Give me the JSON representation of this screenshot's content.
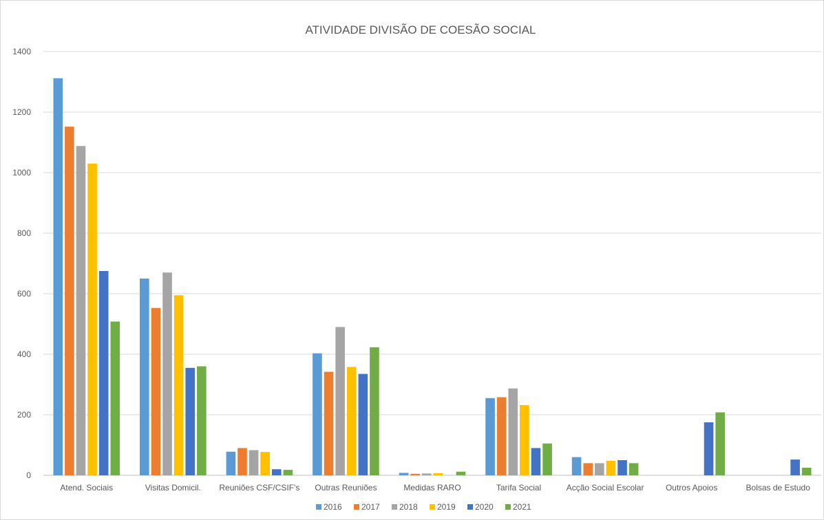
{
  "chart_data": {
    "type": "bar",
    "title": "ATIVIDADE DIVISÃO DE COESÃO SOCIAL",
    "xlabel": "",
    "ylabel": "",
    "ylim": [
      0,
      1400
    ],
    "yticks": [
      0,
      200,
      400,
      600,
      800,
      1000,
      1200,
      1400
    ],
    "grid": true,
    "legend_position": "bottom",
    "categories": [
      "Atend. Sociais",
      "Visitas Domicil.",
      "Reuniões CSF/CSIF's",
      "Outras Reuniões",
      "Medidas RARO",
      "Tarifa Social",
      "Acção Social Escolar",
      "Outros Apoios",
      "Bolsas de Estudo"
    ],
    "series": [
      {
        "name": "2016",
        "color": "#5b9bd5",
        "values": [
          1312,
          650,
          78,
          403,
          8,
          255,
          60,
          0,
          0
        ]
      },
      {
        "name": "2017",
        "color": "#ed7d31",
        "values": [
          1152,
          553,
          90,
          342,
          5,
          258,
          40,
          0,
          0
        ]
      },
      {
        "name": "2018",
        "color": "#a5a5a5",
        "values": [
          1088,
          670,
          83,
          490,
          6,
          287,
          40,
          0,
          0
        ]
      },
      {
        "name": "2019",
        "color": "#ffc000",
        "values": [
          1030,
          595,
          77,
          358,
          7,
          232,
          48,
          0,
          0
        ]
      },
      {
        "name": "2020",
        "color": "#4472c4",
        "values": [
          675,
          355,
          20,
          335,
          0,
          90,
          50,
          175,
          52
        ]
      },
      {
        "name": "2021",
        "color": "#70ad47",
        "values": [
          508,
          360,
          18,
          423,
          12,
          105,
          40,
          208,
          25
        ]
      }
    ]
  }
}
